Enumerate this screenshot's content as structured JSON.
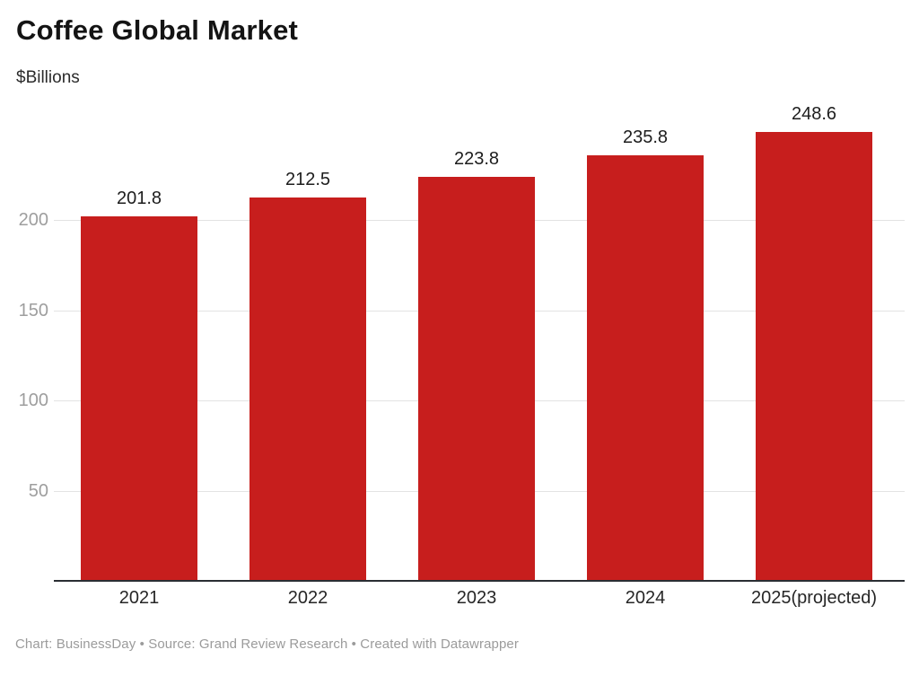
{
  "header": {
    "title": "Coffee Global Market",
    "subtitle": "$Billions"
  },
  "chart_data": {
    "type": "bar",
    "title": "Coffee Global Market",
    "ylabel": "$Billions",
    "categories": [
      "2021",
      "2022",
      "2023",
      "2024",
      "2025(projected)"
    ],
    "values": [
      201.8,
      212.5,
      223.8,
      235.8,
      248.6
    ],
    "value_labels": [
      "201.8",
      "212.5",
      "223.8",
      "235.8",
      "248.6"
    ],
    "y_ticks": [
      50,
      100,
      150,
      200
    ],
    "ylim": [
      0,
      252
    ],
    "grid": true,
    "legend_position": "none",
    "bar_color": "#c71e1d",
    "axis_color": "#2a2e33",
    "gridline_color": "#e3e3e3",
    "tick_label_color": "#9e9e9e"
  },
  "footer": {
    "credit": "Chart: BusinessDay • Source: Grand Review Research • Created with Datawrapper"
  }
}
